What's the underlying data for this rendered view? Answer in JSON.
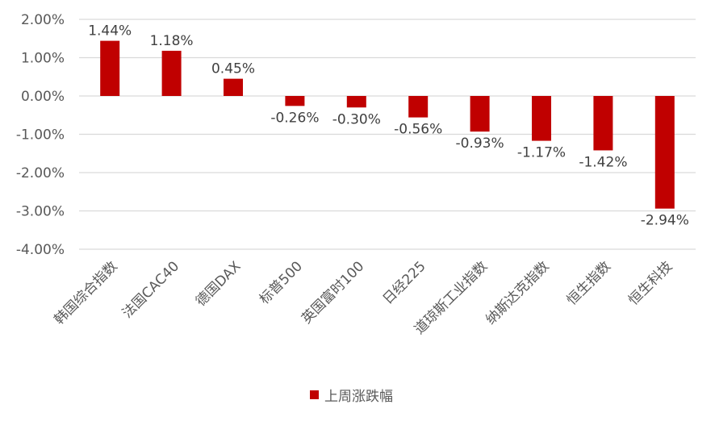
{
  "chart_data": {
    "type": "bar",
    "categories": [
      "韩国综合指数",
      "法国CAC40",
      "德国DAX",
      "标普500",
      "英国富时100",
      "日经225",
      "道琼斯工业指数",
      "纳斯达克指数",
      "恒生指数",
      "恒生科技"
    ],
    "series": [
      {
        "name": "上周涨跌幅",
        "values": [
          1.44,
          1.18,
          0.45,
          -0.26,
          -0.3,
          -0.56,
          -0.93,
          -1.17,
          -1.42,
          -2.94
        ],
        "labels": [
          "1.44%",
          "1.18%",
          "0.45%",
          "-0.26%",
          "-0.30%",
          "-0.56%",
          "-0.93%",
          "-1.17%",
          "-1.42%",
          "-2.94%"
        ]
      }
    ],
    "yticks": [
      2,
      1,
      0,
      -1,
      -2,
      -3,
      -4
    ],
    "ytick_labels": [
      "2.00%",
      "1.00%",
      "0.00%",
      "-1.00%",
      "-2.00%",
      "-3.00%",
      "-4.00%"
    ],
    "ylim": [
      -4,
      2
    ],
    "grid": true,
    "legend_position": "bottom",
    "colors": {
      "bar": "#C00000",
      "grid": "#D9D9D9"
    }
  }
}
